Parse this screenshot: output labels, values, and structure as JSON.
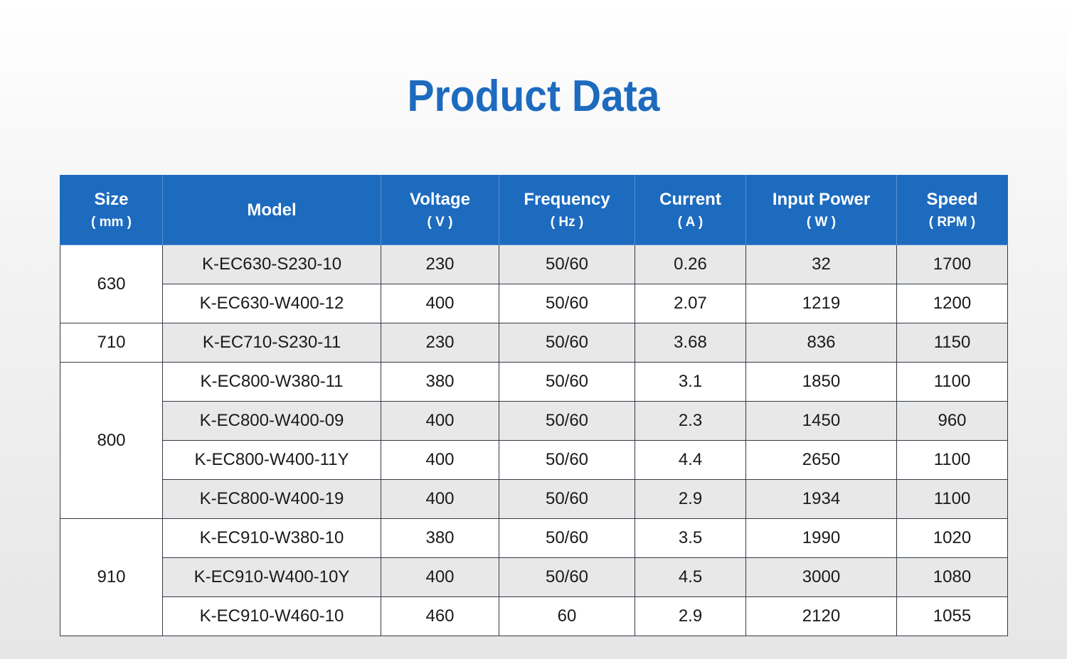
{
  "title": "Product Data",
  "accent_color": "#1d6bbf",
  "table": {
    "headers": [
      {
        "name": "Size",
        "unit": "( mm )"
      },
      {
        "name": "Model",
        "unit": ""
      },
      {
        "name": "Voltage",
        "unit": "( V )"
      },
      {
        "name": "Frequency",
        "unit": "( Hz )"
      },
      {
        "name": "Current",
        "unit": "( A )"
      },
      {
        "name": "Input Power",
        "unit": "( W )"
      },
      {
        "name": "Speed",
        "unit": "( RPM )"
      }
    ],
    "groups": [
      {
        "size": "630",
        "rows": [
          {
            "model": "K-EC630-S230-10",
            "voltage": "230",
            "frequency": "50/60",
            "current": "0.26",
            "power": "32",
            "speed": "1700"
          },
          {
            "model": "K-EC630-W400-12",
            "voltage": "400",
            "frequency": "50/60",
            "current": "2.07",
            "power": "1219",
            "speed": "1200"
          }
        ]
      },
      {
        "size": "710",
        "rows": [
          {
            "model": "K-EC710-S230-11",
            "voltage": "230",
            "frequency": "50/60",
            "current": "3.68",
            "power": "836",
            "speed": "1150"
          }
        ]
      },
      {
        "size": "800",
        "rows": [
          {
            "model": "K-EC800-W380-11",
            "voltage": "380",
            "frequency": "50/60",
            "current": "3.1",
            "power": "1850",
            "speed": "1100"
          },
          {
            "model": "K-EC800-W400-09",
            "voltage": "400",
            "frequency": "50/60",
            "current": "2.3",
            "power": "1450",
            "speed": "960"
          },
          {
            "model": "K-EC800-W400-11Y",
            "voltage": "400",
            "frequency": "50/60",
            "current": "4.4",
            "power": "2650",
            "speed": "1100"
          },
          {
            "model": "K-EC800-W400-19",
            "voltage": "400",
            "frequency": "50/60",
            "current": "2.9",
            "power": "1934",
            "speed": "1100"
          }
        ]
      },
      {
        "size": "910",
        "rows": [
          {
            "model": "K-EC910-W380-10",
            "voltage": "380",
            "frequency": "50/60",
            "current": "3.5",
            "power": "1990",
            "speed": "1020"
          },
          {
            "model": "K-EC910-W400-10Y",
            "voltage": "400",
            "frequency": "50/60",
            "current": "4.5",
            "power": "3000",
            "speed": "1080"
          },
          {
            "model": "K-EC910-W460-10",
            "voltage": "460",
            "frequency": "60",
            "current": "2.9",
            "power": "2120",
            "speed": "1055"
          }
        ]
      }
    ]
  }
}
